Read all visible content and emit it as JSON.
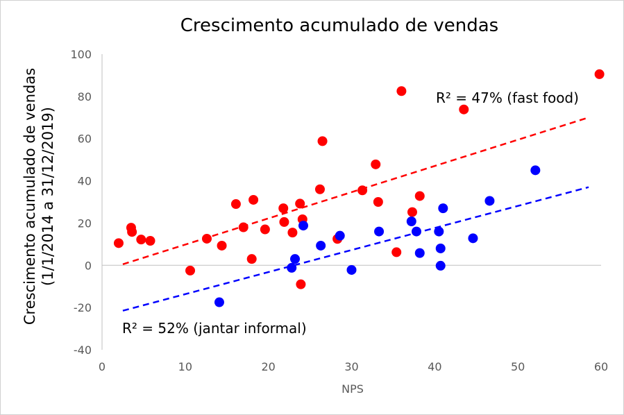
{
  "chart_data": {
    "type": "scatter",
    "title": "Crescimento acumulado de vendas",
    "xlabel": "NPS",
    "ylabel_lines": [
      "Crescimento acumulado de vendas",
      "(1/1/2014  a 31/12/2019)"
    ],
    "xlim": [
      0,
      60
    ],
    "ylim": [
      -40,
      100
    ],
    "x_ticks": [
      0,
      10,
      20,
      30,
      40,
      50,
      60
    ],
    "y_ticks": [
      -40,
      -20,
      0,
      20,
      40,
      60,
      80,
      100
    ],
    "grid": false,
    "colors": {
      "fast_food": "#ff0000",
      "jantar_informal": "#0000ff",
      "axis": "#bfbfbf"
    },
    "series": [
      {
        "color": "#ff0000",
        "points": [
          [
            2.0,
            10.5
          ],
          [
            3.5,
            17.8
          ],
          [
            3.6,
            15.8
          ],
          [
            4.7,
            12.2
          ],
          [
            5.8,
            11.6
          ],
          [
            10.6,
            -2.5
          ],
          [
            12.6,
            12.6
          ],
          [
            14.4,
            9.3
          ],
          [
            16.1,
            29.0
          ],
          [
            17.0,
            18.0
          ],
          [
            18.0,
            3.0
          ],
          [
            18.2,
            31.0
          ],
          [
            19.6,
            17.0
          ],
          [
            21.8,
            27.0
          ],
          [
            21.9,
            20.5
          ],
          [
            22.9,
            15.5
          ],
          [
            23.8,
            29.2
          ],
          [
            23.9,
            -9.0
          ],
          [
            24.1,
            21.8
          ],
          [
            26.2,
            36.0
          ],
          [
            26.5,
            58.8
          ],
          [
            28.3,
            12.5
          ],
          [
            31.3,
            35.5
          ],
          [
            32.9,
            47.8
          ],
          [
            33.2,
            30.0
          ],
          [
            35.4,
            6.2
          ],
          [
            36.0,
            82.5
          ],
          [
            37.3,
            25.2
          ],
          [
            38.2,
            32.8
          ],
          [
            43.5,
            73.8
          ],
          [
            59.8,
            90.5
          ]
        ],
        "trendline": [
          [
            2.5,
            0.5
          ],
          [
            58.5,
            70.0
          ]
        ],
        "annotation": "R² = 47% (fast food)"
      },
      {
        "color": "#0000ff",
        "points": [
          [
            14.1,
            -17.5
          ],
          [
            22.8,
            -1.2
          ],
          [
            23.2,
            3.0
          ],
          [
            24.2,
            18.8
          ],
          [
            26.3,
            9.3
          ],
          [
            28.6,
            14.0
          ],
          [
            30.0,
            -2.2
          ],
          [
            33.3,
            16.0
          ],
          [
            37.2,
            20.8
          ],
          [
            37.8,
            16.0
          ],
          [
            38.2,
            5.8
          ],
          [
            40.5,
            16.0
          ],
          [
            40.7,
            8.0
          ],
          [
            40.7,
            -0.2
          ],
          [
            41.0,
            27.0
          ],
          [
            44.6,
            12.8
          ],
          [
            46.6,
            30.5
          ],
          [
            52.1,
            45.0
          ]
        ],
        "trendline": [
          [
            2.5,
            -21.5
          ],
          [
            58.5,
            37.0
          ]
        ],
        "annotation": "R² = 52% (jantar informal)"
      }
    ]
  }
}
